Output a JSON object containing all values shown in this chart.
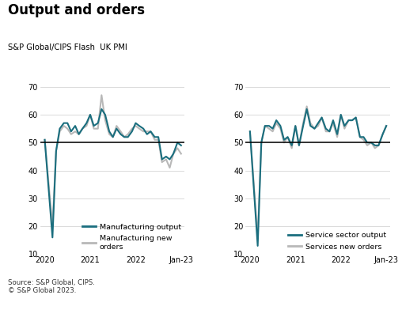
{
  "title": "Output and orders",
  "subtitle": "S&P Global/CIPS Flash  UK PMI",
  "source": "Source: S&P Global, CIPS.\n© S&P Global 2023.",
  "ylim": [
    10,
    70
  ],
  "yticks": [
    10,
    20,
    30,
    40,
    50,
    60,
    70
  ],
  "reference_line": 50,
  "color_teal": "#1a6e7e",
  "color_gray": "#b8b8b8",
  "bg_color": "#ffffff",
  "linewidth": 1.5,
  "mfg_output_x": [
    2020.0,
    2020.17,
    2020.25,
    2020.33,
    2020.42,
    2020.5,
    2020.58,
    2020.67,
    2020.75,
    2020.83,
    2020.92,
    2021.0,
    2021.08,
    2021.17,
    2021.25,
    2021.33,
    2021.42,
    2021.5,
    2021.58,
    2021.67,
    2021.75,
    2021.83,
    2021.92,
    2022.0,
    2022.08,
    2022.17,
    2022.25,
    2022.33,
    2022.42,
    2022.5,
    2022.58,
    2022.67,
    2022.75,
    2022.83,
    2022.92,
    2023.0
  ],
  "mfg_output_y": [
    51,
    16,
    47,
    55,
    57,
    57,
    54,
    56,
    53,
    55,
    57,
    60,
    56,
    57,
    62,
    60,
    54,
    52,
    55,
    53,
    52,
    52,
    54,
    57,
    56,
    55,
    53,
    54,
    52,
    52,
    44,
    45,
    44,
    46,
    50,
    49
  ],
  "mfg_orders_x": [
    2020.0,
    2020.17,
    2020.25,
    2020.33,
    2020.42,
    2020.5,
    2020.58,
    2020.67,
    2020.75,
    2020.83,
    2020.92,
    2021.0,
    2021.08,
    2021.17,
    2021.25,
    2021.33,
    2021.42,
    2021.5,
    2021.58,
    2021.67,
    2021.75,
    2021.83,
    2021.92,
    2022.0,
    2022.08,
    2022.17,
    2022.25,
    2022.33,
    2022.42,
    2022.5,
    2022.58,
    2022.67,
    2022.75,
    2022.83,
    2022.92,
    2023.0
  ],
  "mfg_orders_y": [
    51,
    20,
    47,
    54,
    56,
    55,
    53,
    54,
    53,
    55,
    56,
    60,
    55,
    55,
    67,
    58,
    53,
    52,
    56,
    54,
    52,
    53,
    55,
    56,
    55,
    54,
    54,
    54,
    51,
    51,
    43,
    44,
    41,
    46,
    48,
    46
  ],
  "svc_output_x": [
    2020.0,
    2020.17,
    2020.25,
    2020.33,
    2020.42,
    2020.5,
    2020.58,
    2020.67,
    2020.75,
    2020.83,
    2020.92,
    2021.0,
    2021.08,
    2021.17,
    2021.25,
    2021.33,
    2021.42,
    2021.5,
    2021.58,
    2021.67,
    2021.75,
    2021.83,
    2021.92,
    2022.0,
    2022.08,
    2022.17,
    2022.25,
    2022.33,
    2022.42,
    2022.5,
    2022.58,
    2022.67,
    2022.75,
    2022.83,
    2022.92,
    2023.0
  ],
  "svc_output_y": [
    54,
    13,
    50,
    56,
    56,
    55,
    58,
    56,
    51,
    52,
    49,
    56,
    49,
    56,
    62,
    56,
    55,
    57,
    59,
    55,
    54,
    58,
    53,
    60,
    56,
    58,
    58,
    59,
    52,
    52,
    50,
    50,
    49,
    49,
    53,
    56
  ],
  "svc_orders_x": [
    2020.0,
    2020.17,
    2020.25,
    2020.33,
    2020.42,
    2020.5,
    2020.58,
    2020.67,
    2020.75,
    2020.83,
    2020.92,
    2021.0,
    2021.08,
    2021.17,
    2021.25,
    2021.33,
    2021.42,
    2021.5,
    2021.58,
    2021.67,
    2021.75,
    2021.83,
    2021.92,
    2022.0,
    2022.08,
    2022.17,
    2022.25,
    2022.33,
    2022.42,
    2022.5,
    2022.58,
    2022.67,
    2022.75,
    2022.83,
    2022.92,
    2023.0
  ],
  "svc_orders_y": [
    54,
    16,
    50,
    56,
    55,
    54,
    57,
    55,
    50,
    52,
    48,
    56,
    49,
    57,
    63,
    57,
    55,
    56,
    59,
    54,
    54,
    57,
    52,
    60,
    55,
    58,
    58,
    59,
    52,
    51,
    49,
    50,
    48,
    49,
    53,
    56
  ],
  "xtick_positions": [
    2020.0,
    2021.0,
    2022.0,
    2023.0
  ],
  "xtick_labels": [
    "2020",
    "2021",
    "2022",
    "Jan-23"
  ],
  "legend_mfg_output": "Manufacturing output",
  "legend_mfg_orders": "Manufacturing new\norders",
  "legend_svc_output": "Service sector output",
  "legend_svc_orders": "Services new orders"
}
